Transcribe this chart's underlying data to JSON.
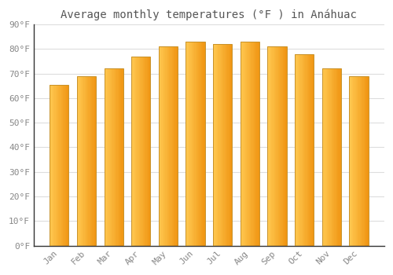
{
  "title": "Average monthly temperatures (°F ) in Anáhuac",
  "months": [
    "Jan",
    "Feb",
    "Mar",
    "Apr",
    "May",
    "Jun",
    "Jul",
    "Aug",
    "Sep",
    "Oct",
    "Nov",
    "Dec"
  ],
  "values": [
    65.5,
    69.0,
    72.0,
    77.0,
    81.0,
    83.0,
    82.0,
    83.0,
    81.0,
    78.0,
    72.0,
    69.0
  ],
  "bar_color_left": "#FFD966",
  "bar_color_right": "#F5A623",
  "bar_border_color": "#C8922A",
  "background_color": "#ffffff",
  "grid_color": "#dddddd",
  "ylim": [
    0,
    90
  ],
  "yticks": [
    0,
    10,
    20,
    30,
    40,
    50,
    60,
    70,
    80,
    90
  ],
  "ytick_labels": [
    "0°F",
    "10°F",
    "20°F",
    "30°F",
    "40°F",
    "50°F",
    "60°F",
    "70°F",
    "80°F",
    "90°F"
  ],
  "title_fontsize": 10,
  "tick_fontsize": 8,
  "axis_color": "#888888",
  "title_color": "#555555",
  "bar_width": 0.7,
  "n_gradient_steps": 20
}
